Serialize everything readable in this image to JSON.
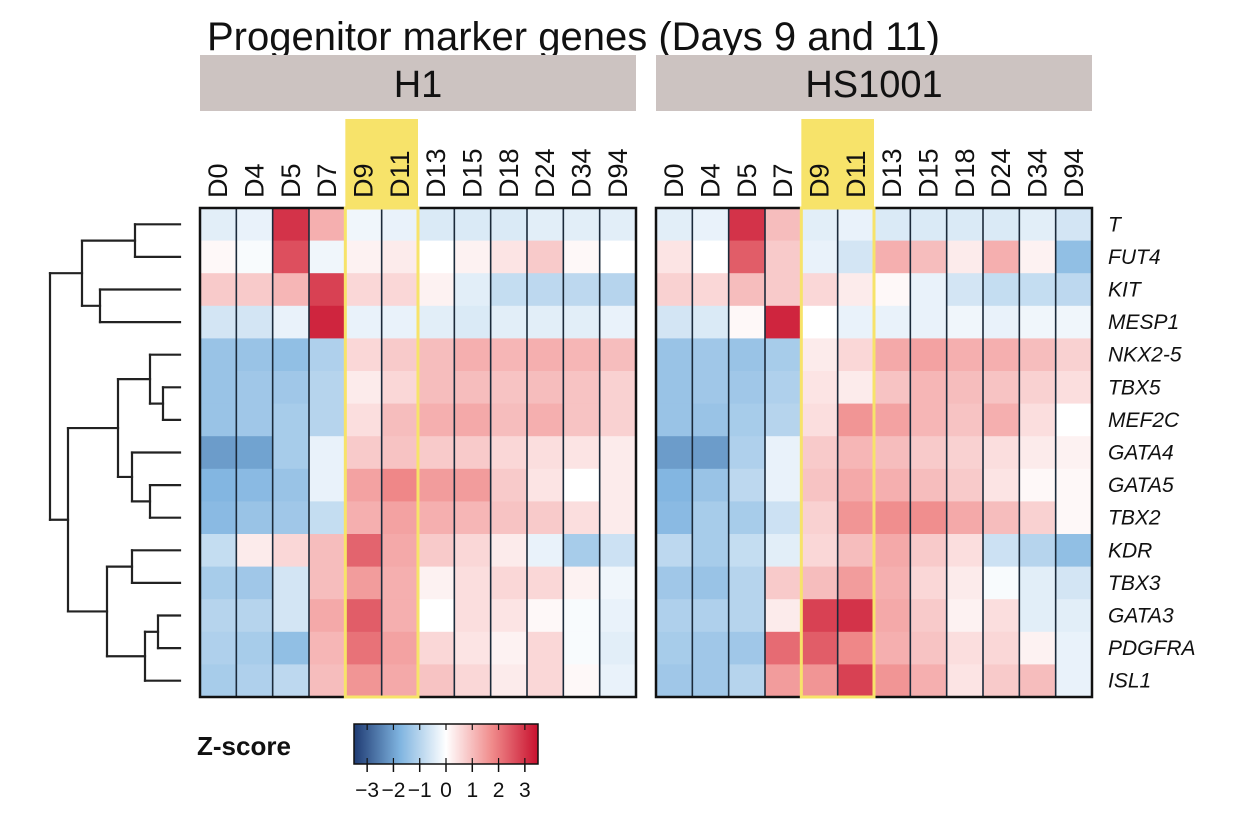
{
  "chart_data": {
    "type": "heatmap",
    "title": "Progenitor marker genes (Days 9 and 11)",
    "panels": [
      {
        "label": "H1",
        "columns": [
          "D0",
          "D4",
          "D5",
          "D7",
          "D9",
          "D11",
          "D13",
          "D15",
          "D18",
          "D24",
          "D34",
          "D94"
        ],
        "rows": [
          "T",
          "FUT4",
          "KIT",
          "MESP1",
          "NKX2-5",
          "TBX5",
          "MEF2C",
          "GATA4",
          "GATA5",
          "TBX2",
          "KDR",
          "TBX3",
          "GATA3",
          "PDGFRA",
          "ISL1"
        ],
        "values": [
          [
            -0.4,
            -0.3,
            3.0,
            1.2,
            -0.2,
            -0.3,
            -0.5,
            -0.5,
            -0.5,
            -0.4,
            -0.4,
            -0.4
          ],
          [
            0.1,
            -0.1,
            2.6,
            -0.2,
            0.2,
            0.3,
            0.0,
            0.2,
            0.4,
            0.8,
            0.1,
            0.0
          ],
          [
            0.8,
            0.8,
            1.1,
            2.8,
            0.6,
            0.6,
            0.2,
            -0.4,
            -0.8,
            -0.9,
            -0.9,
            -1.0
          ],
          [
            -0.6,
            -0.6,
            -0.3,
            3.2,
            -0.3,
            -0.3,
            -0.4,
            -0.5,
            -0.4,
            -0.4,
            -0.4,
            -0.3
          ],
          [
            -1.4,
            -1.4,
            -1.5,
            -1.1,
            0.6,
            0.8,
            1.0,
            1.2,
            1.1,
            1.2,
            1.1,
            1.0
          ],
          [
            -1.4,
            -1.3,
            -1.3,
            -1.0,
            0.3,
            0.6,
            1.0,
            1.0,
            0.9,
            1.0,
            0.9,
            0.7
          ],
          [
            -1.4,
            -1.3,
            -1.2,
            -1.0,
            0.5,
            1.0,
            1.2,
            1.3,
            1.0,
            1.2,
            0.9,
            0.7
          ],
          [
            -2.1,
            -2.0,
            -1.2,
            -0.3,
            0.8,
            0.9,
            0.8,
            0.8,
            0.6,
            0.5,
            0.4,
            0.3
          ],
          [
            -1.7,
            -1.6,
            -1.4,
            -0.3,
            1.4,
            1.8,
            1.5,
            1.5,
            0.8,
            0.4,
            0.0,
            0.3
          ],
          [
            -1.6,
            -1.4,
            -1.3,
            -0.8,
            1.2,
            1.4,
            1.2,
            1.1,
            0.9,
            0.8,
            0.5,
            0.3
          ],
          [
            -0.8,
            0.3,
            0.6,
            1.0,
            2.3,
            1.3,
            0.8,
            0.6,
            0.3,
            -0.3,
            -1.2,
            -0.7
          ],
          [
            -1.2,
            -1.3,
            -0.6,
            1.0,
            1.5,
            1.2,
            0.2,
            0.5,
            0.6,
            0.6,
            0.2,
            -0.2
          ],
          [
            -1.0,
            -1.0,
            -0.6,
            1.3,
            2.4,
            1.2,
            0.0,
            0.5,
            0.4,
            0.1,
            -0.1,
            -0.3
          ],
          [
            -1.1,
            -1.2,
            -1.5,
            1.1,
            2.1,
            1.4,
            0.6,
            0.4,
            0.2,
            0.6,
            -0.1,
            -0.4
          ],
          [
            -1.2,
            -1.1,
            -0.9,
            1.0,
            1.6,
            1.3,
            0.9,
            0.6,
            0.3,
            0.6,
            0.1,
            -0.3
          ]
        ]
      },
      {
        "label": "HS1001",
        "columns": [
          "D0",
          "D4",
          "D5",
          "D7",
          "D9",
          "D11",
          "D13",
          "D15",
          "D18",
          "D24",
          "D34",
          "D94"
        ],
        "rows": [
          "T",
          "FUT4",
          "KIT",
          "MESP1",
          "NKX2-5",
          "TBX5",
          "MEF2C",
          "GATA4",
          "GATA5",
          "TBX2",
          "KDR",
          "TBX3",
          "GATA3",
          "PDGFRA",
          "ISL1"
        ],
        "values": [
          [
            -0.4,
            -0.3,
            3.0,
            1.0,
            -0.4,
            -0.3,
            -0.5,
            -0.5,
            -0.5,
            -0.5,
            -0.4,
            -0.6
          ],
          [
            0.4,
            0.0,
            2.4,
            0.8,
            -0.3,
            -0.6,
            1.2,
            1.0,
            0.3,
            1.2,
            0.2,
            -1.5
          ],
          [
            0.7,
            0.6,
            1.0,
            0.8,
            0.6,
            0.3,
            0.1,
            -0.3,
            -0.6,
            -0.8,
            -0.8,
            -0.9
          ],
          [
            -0.6,
            -0.5,
            0.1,
            3.2,
            0.0,
            -0.3,
            -0.3,
            -0.3,
            -0.2,
            -0.3,
            -0.2,
            -0.2
          ],
          [
            -1.4,
            -1.3,
            -1.4,
            -1.2,
            0.3,
            0.6,
            1.3,
            1.4,
            1.2,
            1.2,
            1.0,
            0.7
          ],
          [
            -1.4,
            -1.3,
            -1.3,
            -1.1,
            0.4,
            0.3,
            0.9,
            1.1,
            1.0,
            0.9,
            0.7,
            0.5
          ],
          [
            -1.4,
            -1.4,
            -1.2,
            -1.0,
            0.5,
            1.6,
            1.4,
            1.1,
            0.9,
            1.2,
            0.5,
            0.0
          ],
          [
            -2.1,
            -2.1,
            -1.1,
            -0.3,
            0.8,
            1.1,
            1.0,
            0.8,
            0.7,
            0.5,
            0.3,
            0.2
          ],
          [
            -1.7,
            -1.4,
            -0.9,
            -0.3,
            0.9,
            1.3,
            1.2,
            1.0,
            0.8,
            0.4,
            0.1,
            0.1
          ],
          [
            -1.6,
            -1.2,
            -1.2,
            -0.7,
            0.7,
            1.6,
            1.7,
            1.7,
            1.3,
            1.0,
            0.7,
            0.1
          ],
          [
            -0.9,
            -1.2,
            -0.8,
            -0.4,
            0.6,
            1.0,
            1.3,
            0.8,
            0.5,
            -0.7,
            -1.0,
            -1.5
          ],
          [
            -1.3,
            -1.4,
            -1.0,
            0.8,
            1.0,
            1.5,
            1.2,
            0.6,
            0.3,
            -0.1,
            -0.4,
            -0.6
          ],
          [
            -1.1,
            -1.1,
            -1.0,
            0.3,
            2.8,
            3.0,
            1.3,
            0.8,
            0.2,
            0.5,
            -0.4,
            -0.4
          ],
          [
            -1.2,
            -1.3,
            -1.3,
            2.2,
            2.4,
            1.8,
            1.2,
            0.9,
            0.5,
            0.6,
            0.2,
            -0.3
          ],
          [
            -1.3,
            -1.3,
            -1.0,
            1.5,
            1.6,
            2.8,
            1.6,
            1.2,
            0.4,
            0.8,
            1.0,
            -0.3
          ]
        ]
      }
    ],
    "highlight_columns": [
      "D9",
      "D11"
    ],
    "highlight_color": "#f7e36a",
    "colorbar": {
      "title": "Z-score",
      "ticks": [
        -3,
        -2,
        -1,
        0,
        1,
        2,
        3
      ],
      "tick_labels": [
        "−3",
        "−2",
        "−1",
        "0",
        "1",
        "2",
        "3"
      ],
      "range": [
        -3.5,
        3.5
      ],
      "colors": [
        "#1f3b73",
        "#7fb4e0",
        "#ffffff",
        "#f08b8b",
        "#c8102e"
      ]
    },
    "dendrogram": "left",
    "strip_color": "#ccc3c1"
  }
}
